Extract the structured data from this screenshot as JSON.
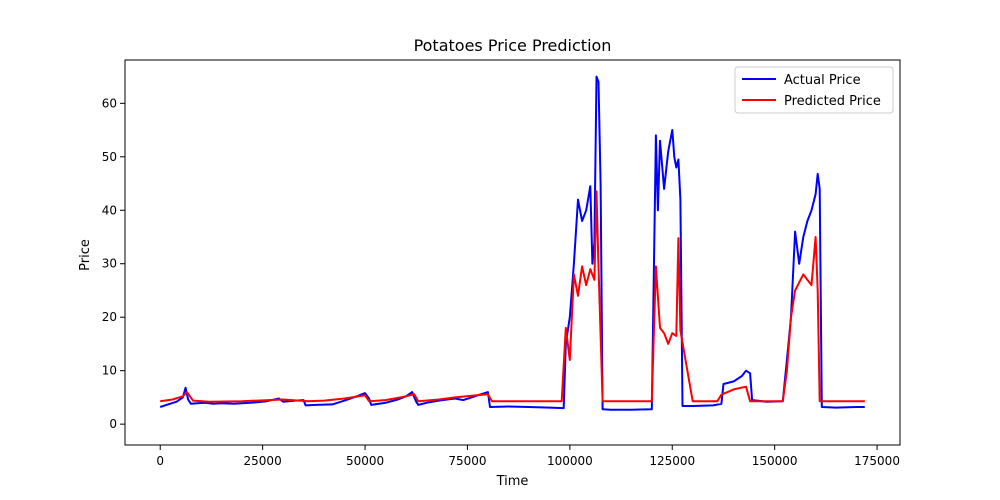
{
  "chart_data": {
    "type": "line",
    "title": "Potatoes Price Prediction",
    "xlabel": "Time",
    "ylabel": "Price",
    "xlim": [
      -8600,
      180600
    ],
    "ylim": [
      -3.9,
      68.1
    ],
    "xticks": [
      0,
      25000,
      50000,
      75000,
      100000,
      125000,
      150000,
      175000
    ],
    "xtick_labels": [
      "0",
      "25000",
      "50000",
      "75000",
      "100000",
      "125000",
      "150000",
      "175000"
    ],
    "yticks": [
      0,
      10,
      20,
      30,
      40,
      50,
      60
    ],
    "ytick_labels": [
      "0",
      "10",
      "20",
      "30",
      "40",
      "50",
      "60"
    ],
    "grid": false,
    "legend_position": "top-right",
    "series": [
      {
        "name": "Actual Price",
        "color": "#0000ff",
        "x": [
          0,
          1500,
          4000,
          5500,
          6200,
          6800,
          7500,
          9000,
          11000,
          13000,
          15000,
          18000,
          22000,
          26000,
          29000,
          30000,
          33000,
          35000,
          35500,
          38000,
          42000,
          45000,
          48000,
          50000,
          51000,
          51500,
          55000,
          58000,
          60000,
          61500,
          62500,
          63000,
          65000,
          68000,
          70000,
          72000,
          74000,
          76000,
          78000,
          80000,
          80500,
          85000,
          90000,
          95000,
          98500,
          99000,
          100000,
          101000,
          102000,
          103000,
          104000,
          105000,
          105500,
          106000,
          106500,
          107000,
          107500,
          108000,
          110000,
          115000,
          120000,
          121000,
          121500,
          122000,
          123000,
          124000,
          125000,
          125500,
          126000,
          126500,
          127000,
          127500,
          130000,
          135000,
          137000,
          137500,
          140000,
          142000,
          143000,
          144000,
          144500,
          148000,
          152000,
          153000,
          154000,
          155000,
          156000,
          157000,
          158000,
          159000,
          160000,
          160500,
          161000,
          161500,
          165000,
          170000,
          172000
        ],
        "y": [
          3.2,
          3.6,
          4.2,
          5.0,
          6.8,
          4.6,
          3.8,
          3.9,
          4.0,
          3.8,
          3.9,
          3.8,
          4.0,
          4.3,
          4.8,
          4.2,
          4.4,
          4.5,
          3.5,
          3.6,
          3.7,
          4.4,
          5.2,
          5.8,
          4.8,
          3.6,
          4.0,
          4.6,
          5.2,
          6.0,
          4.2,
          3.6,
          4.0,
          4.4,
          4.6,
          4.8,
          4.5,
          5.0,
          5.5,
          6.0,
          3.2,
          3.3,
          3.2,
          3.1,
          3.0,
          15.0,
          20.0,
          30.0,
          42.0,
          38.0,
          40.0,
          44.5,
          30.0,
          34.0,
          65.0,
          64.0,
          45.0,
          2.8,
          2.7,
          2.7,
          2.8,
          54.0,
          40.0,
          53.0,
          44.0,
          51.0,
          55.0,
          50.0,
          48.0,
          49.5,
          42.0,
          3.4,
          3.4,
          3.5,
          3.8,
          7.5,
          8.0,
          9.0,
          10.0,
          9.5,
          4.5,
          4.2,
          4.3,
          12.0,
          20.0,
          36.0,
          30.0,
          35.0,
          38.0,
          40.0,
          43.0,
          46.8,
          44.0,
          3.2,
          3.1,
          3.2,
          3.2
        ]
      },
      {
        "name": "Predicted Price",
        "color": "#ff0000",
        "x": [
          0,
          3000,
          5500,
          6500,
          8000,
          12000,
          20000,
          30000,
          36000,
          40000,
          45000,
          50000,
          51000,
          55000,
          60000,
          62000,
          63000,
          68000,
          72000,
          76000,
          80000,
          81000,
          90000,
          98000,
          99000,
          100000,
          101000,
          102000,
          103000,
          104000,
          105000,
          106000,
          106500,
          107000,
          108000,
          115000,
          120000,
          121000,
          122000,
          123000,
          124000,
          125000,
          126000,
          126500,
          127000,
          130000,
          136000,
          137000,
          140000,
          143000,
          144000,
          148000,
          152000,
          153000,
          154000,
          155000,
          156000,
          157000,
          158000,
          159000,
          160000,
          160500,
          161000,
          165000,
          172000
        ],
        "y": [
          4.3,
          4.6,
          5.2,
          6.0,
          4.4,
          4.2,
          4.3,
          4.6,
          4.3,
          4.4,
          4.8,
          5.4,
          4.3,
          4.5,
          5.2,
          5.6,
          4.3,
          4.6,
          5.0,
          5.3,
          5.6,
          4.3,
          4.3,
          4.3,
          18.0,
          12.0,
          28.0,
          24.0,
          29.5,
          26.0,
          29.0,
          27.0,
          43.5,
          29.5,
          4.3,
          4.3,
          4.3,
          29.5,
          18.0,
          17.0,
          15.0,
          17.0,
          16.5,
          34.8,
          17.5,
          4.3,
          4.3,
          5.5,
          6.5,
          7.0,
          4.3,
          4.3,
          4.3,
          10.0,
          20.0,
          25.0,
          26.5,
          28.0,
          27.0,
          26.0,
          35.0,
          25.0,
          4.3,
          4.3,
          4.3
        ]
      }
    ]
  }
}
